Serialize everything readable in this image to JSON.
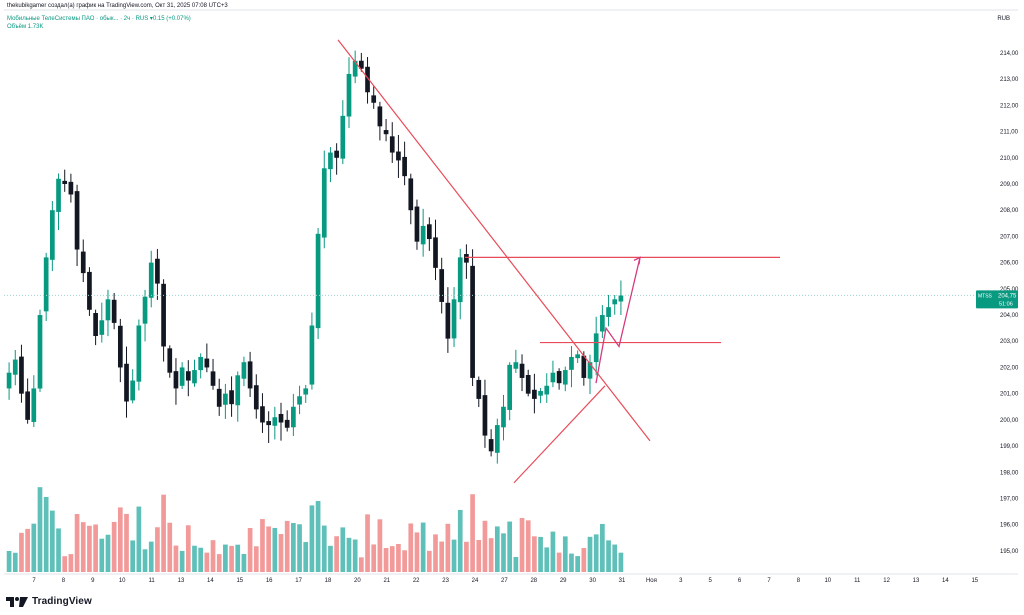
{
  "header": {
    "line1": "thekubikgamer создал(а) график на TradingView.com, Окт 31, 2025 07:08 UTC+3",
    "line2": "Мобильные ТелеСистемы ПАО · обык... · 2ч · RUS  ▾0.15 (+0.07%)",
    "line3": "Объём  1.73K"
  },
  "currency": "RUB",
  "price_tag": {
    "ticker": "MTSS",
    "price": "204,75",
    "timer": "51:06"
  },
  "footer": {
    "brand": "TradingView"
  },
  "colors": {
    "up": "#089981",
    "down": "#131722",
    "vol_up": "#5ec0b8",
    "vol_down": "#f29a9a",
    "trendline": "#e84c5a",
    "level": "#e84c5a",
    "projection": "#d63a7e",
    "tag_bg": "#089981",
    "last_line": "#9fd7cf"
  },
  "chart_data": {
    "type": "candlestick",
    "symbol": "MTSS",
    "timeframe": "2ч",
    "y_axis": {
      "range": [
        194.5,
        214.8
      ],
      "ticks": [
        "195,00",
        "196,00",
        "197,00",
        "198,00",
        "199,00",
        "200,00",
        "201,00",
        "202,00",
        "203,00",
        "204,00",
        "205,00",
        "206,00",
        "207,00",
        "208,00",
        "209,00",
        "210,00",
        "211,00",
        "212,00",
        "213,00",
        "214,00"
      ]
    },
    "x_axis": {
      "range": [
        6,
        15.5
      ],
      "ticks": [
        {
          "label": "7",
          "x": 7
        },
        {
          "label": "8",
          "x": 8
        },
        {
          "label": "9",
          "x": 9
        },
        {
          "label": "10",
          "x": 10
        },
        {
          "label": "11",
          "x": 11
        },
        {
          "label": "13",
          "x": 12
        },
        {
          "label": "14",
          "x": 13
        },
        {
          "label": "15",
          "x": 14
        },
        {
          "label": "16",
          "x": 15
        },
        {
          "label": "17",
          "x": 16
        },
        {
          "label": "18",
          "x": 17
        },
        {
          "label": "20",
          "x": 18
        },
        {
          "label": "21",
          "x": 19
        },
        {
          "label": "22",
          "x": 20
        },
        {
          "label": "23",
          "x": 21
        },
        {
          "label": "24",
          "x": 22
        },
        {
          "label": "27",
          "x": 23
        },
        {
          "label": "28",
          "x": 24
        },
        {
          "label": "29",
          "x": 25
        },
        {
          "label": "30",
          "x": 26
        },
        {
          "label": "31",
          "x": 27
        },
        {
          "label": "Ноя",
          "x": 28
        },
        {
          "label": "3",
          "x": 29
        },
        {
          "label": "5",
          "x": 30
        },
        {
          "label": "6",
          "x": 31
        },
        {
          "label": "7",
          "x": 32
        },
        {
          "label": "8",
          "x": 33
        },
        {
          "label": "10",
          "x": 34
        },
        {
          "label": "11",
          "x": 35
        },
        {
          "label": "12",
          "x": 36
        },
        {
          "label": "13",
          "x": 37
        },
        {
          "label": "14",
          "x": 38
        },
        {
          "label": "15",
          "x": 39
        }
      ]
    },
    "bars_per_session": 5,
    "session_positions": [
      6,
      7,
      8,
      9,
      10,
      11,
      12,
      13,
      14,
      15,
      16,
      17,
      18,
      19,
      20,
      21,
      22,
      23,
      24,
      25,
      26,
      27
    ],
    "closes": [
      201.8,
      202.3,
      201.0,
      200.0,
      201.2,
      204.0,
      206.2,
      208.0,
      209.2,
      209.0,
      208.6,
      206.5,
      205.6,
      204.2,
      203.2,
      203.8,
      204.6,
      203.7,
      202.0,
      200.7,
      201.5,
      203.6,
      204.7,
      206.0,
      205.2,
      202.8,
      201.8,
      201.2,
      202.0,
      201.5,
      201.9,
      202.4,
      202.0,
      201.3,
      200.5,
      201.0,
      200.6,
      201.7,
      202.2,
      201.2,
      200.4,
      199.9,
      199.8,
      200.1,
      199.9,
      199.7,
      200.5,
      200.9,
      201.2,
      203.6,
      207.1,
      209.6,
      210.2,
      210.0,
      211.6,
      213.2,
      213.7,
      213.4,
      212.5,
      212.1,
      211.2,
      210.9,
      210.2,
      209.9,
      209.3,
      208.0,
      206.8,
      207.4,
      206.9,
      205.8,
      204.5,
      203.1,
      204.6,
      206.2,
      206.0,
      201.6,
      200.8,
      199.4,
      198.8,
      199.8,
      200.5,
      202.1,
      202.2,
      201.6,
      201.0,
      200.8,
      201.1,
      201.3,
      201.8,
      201.4,
      201.9,
      202.4,
      202.5,
      201.6,
      202.2,
      203.3,
      204.0,
      204.3,
      204.6,
      204.75
    ],
    "annotations": {
      "resistance_level": 206.2,
      "breakout_level": 202.95,
      "projection_target": 206.2,
      "descending_trendline": "from 214.5 (Oct 18) down to 199.2 (Oct 31)",
      "ascending_support": "from 197.6 (Oct 24) up to 201.3 (Oct 30)"
    },
    "last_price": 204.75,
    "volume_label": "Объём 1.73K"
  }
}
